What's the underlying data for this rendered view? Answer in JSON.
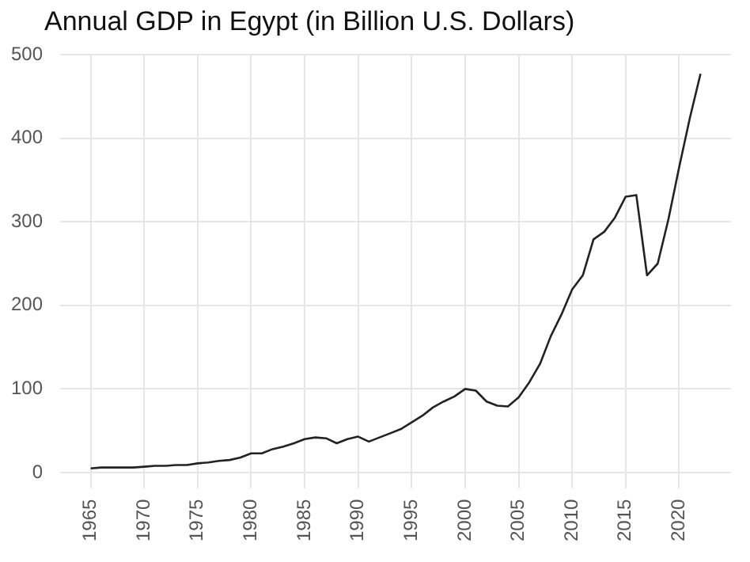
{
  "chart_data": {
    "type": "line",
    "title": "Annual GDP in Egypt (in Billion U.S. Dollars)",
    "x": [
      1965,
      1966,
      1967,
      1968,
      1969,
      1970,
      1971,
      1972,
      1973,
      1974,
      1975,
      1976,
      1977,
      1978,
      1979,
      1980,
      1981,
      1982,
      1983,
      1984,
      1985,
      1986,
      1987,
      1988,
      1989,
      1990,
      1991,
      1992,
      1993,
      1994,
      1995,
      1996,
      1997,
      1998,
      1999,
      2000,
      2001,
      2002,
      2003,
      2004,
      2005,
      2006,
      2007,
      2008,
      2009,
      2010,
      2011,
      2012,
      2013,
      2014,
      2015,
      2016,
      2017,
      2018,
      2019,
      2020,
      2021,
      2022
    ],
    "series": [
      {
        "color": "#222222",
        "values": [
          5,
          6,
          6,
          6,
          6,
          7,
          8,
          8,
          9,
          9,
          11,
          12,
          14,
          15,
          18,
          23,
          23,
          28,
          31,
          35,
          40,
          42,
          41,
          35,
          40,
          43,
          37,
          42,
          47,
          52,
          60,
          68,
          78,
          85,
          91,
          100,
          98,
          85,
          80,
          79,
          90,
          108,
          130,
          163,
          189,
          219,
          236,
          279,
          288,
          305,
          330,
          332,
          236,
          250,
          303,
          365,
          424,
          477
        ]
      }
    ],
    "xlim": [
      1962.15,
      2024.85
    ],
    "xticks": [
      1965,
      1970,
      1975,
      1980,
      1985,
      1990,
      1995,
      2000,
      2005,
      2010,
      2015,
      2020
    ],
    "ylim": [
      -18.6,
      500.6
    ],
    "yticks": [
      0,
      100,
      200,
      300,
      400,
      500
    ],
    "grid": true,
    "legend": false,
    "marker": "none",
    "line_style": "solid"
  }
}
